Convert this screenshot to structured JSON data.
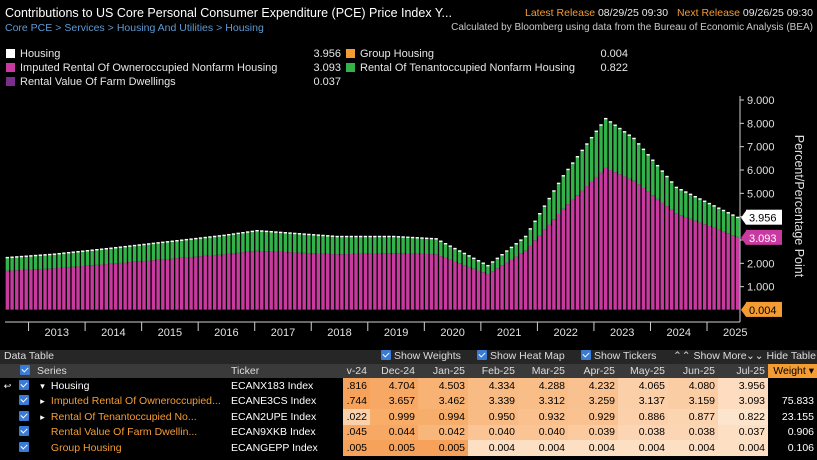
{
  "header": {
    "title": "Contributions to US Core Personal Consumer Expenditure (PCE) Price Index Y...",
    "latest_release_label": "Latest Release",
    "latest_release_value": "08/29/25 09:30",
    "next_release_label": "Next Release",
    "next_release_value": "09/26/25 09:30",
    "breadcrumb": [
      "Core PCE",
      "Services",
      "Housing And Utilities",
      "Housing"
    ],
    "source": "Calculated by Bloomberg using data from the Bureau of Economic Analysis (BEA)"
  },
  "legend": [
    {
      "label": "Housing",
      "value": "3.956",
      "color": "#ffffff"
    },
    {
      "label": "Group Housing",
      "value": "0.004",
      "color": "#f39c34"
    },
    {
      "label": "Imputed Rental Of Owneroccupied Nonfarm Housing",
      "value": "3.093",
      "color": "#c93aa0"
    },
    {
      "label": "Rental Of Tenantoccupied Nonfarm Housing",
      "value": "0.822",
      "color": "#33b24a"
    },
    {
      "label": "Rental Value Of Farm Dwellings",
      "value": "0.037",
      "color": "#7b2e8e"
    }
  ],
  "chart_data": {
    "type": "bar",
    "stacked": true,
    "x_start": "2012-08",
    "x_end": "2025-07",
    "x_tick_labels": [
      "2013",
      "2014",
      "2015",
      "2016",
      "2017",
      "2018",
      "2019",
      "2020",
      "2021",
      "2022",
      "2023",
      "2024",
      "2025"
    ],
    "ylabel": "Percent/Percentage Point",
    "ylim": [
      0,
      9
    ],
    "y_ticks": [
      "1.000",
      "2.000",
      "3.000",
      "4.000",
      "5.000",
      "6.000",
      "7.000",
      "8.000",
      "9.000"
    ],
    "last_value_labels": [
      "3.956",
      "3.093",
      "0.004"
    ],
    "series": [
      {
        "name": "Imputed Rental Of Owneroccupied Nonfarm Housing",
        "color": "#c93aa0",
        "knots": [
          [
            "2012-08",
            1.65
          ],
          [
            "2013-06",
            1.75
          ],
          [
            "2014-06",
            1.95
          ],
          [
            "2015-06",
            2.15
          ],
          [
            "2016-06",
            2.35
          ],
          [
            "2017-01",
            2.5
          ],
          [
            "2018-06",
            2.35
          ],
          [
            "2019-06",
            2.4
          ],
          [
            "2020-03",
            2.35
          ],
          [
            "2021-02",
            1.5
          ],
          [
            "2021-10",
            2.5
          ],
          [
            "2022-06",
            4.3
          ],
          [
            "2023-03",
            6.05
          ],
          [
            "2023-09",
            5.5
          ],
          [
            "2024-06",
            4.1
          ],
          [
            "2025-07",
            3.093
          ]
        ]
      },
      {
        "name": "Rental Of Tenantoccupied Nonfarm Housing",
        "color": "#33b24a",
        "knots": [
          [
            "2012-08",
            0.55
          ],
          [
            "2014-06",
            0.65
          ],
          [
            "2016-06",
            0.8
          ],
          [
            "2017-01",
            0.85
          ],
          [
            "2018-06",
            0.75
          ],
          [
            "2019-06",
            0.7
          ],
          [
            "2020-03",
            0.65
          ],
          [
            "2021-02",
            0.35
          ],
          [
            "2021-10",
            0.6
          ],
          [
            "2022-06",
            1.4
          ],
          [
            "2023-03",
            2.1
          ],
          [
            "2023-09",
            1.8
          ],
          [
            "2024-06",
            1.1
          ],
          [
            "2025-07",
            0.822
          ]
        ]
      },
      {
        "name": "Rental Value Of Farm Dwellings",
        "color": "#7b2e8e",
        "knots": [
          [
            "2012-08",
            0.03
          ],
          [
            "2025-07",
            0.037
          ]
        ]
      },
      {
        "name": "Group Housing",
        "color": "#f39c34",
        "knots": [
          [
            "2012-08",
            0.004
          ],
          [
            "2025-07",
            0.004
          ]
        ]
      }
    ]
  },
  "data_table": {
    "title": "Data Table",
    "options": [
      "Show Weights",
      "Show Heat Map",
      "Show Tickers",
      "Show More",
      "Hide Table"
    ],
    "columns": [
      "Series",
      "Ticker",
      "v-24",
      "Dec-24",
      "Jan-25",
      "Feb-25",
      "Mar-25",
      "Apr-25",
      "May-25",
      "Jun-25",
      "Jul-25",
      "Weight"
    ],
    "rows": [
      {
        "series": "Housing",
        "ticker": "ECANX183 Index",
        "values": [
          ".816",
          "4.704",
          "4.503",
          "4.334",
          "4.288",
          "4.232",
          "4.065",
          "4.080",
          "3.956"
        ],
        "weight": "",
        "top": true,
        "expander": "▾"
      },
      {
        "series": "Imputed Rental Of Owneroccupied...",
        "ticker": "ECANE3CS Index",
        "values": [
          ".744",
          "3.657",
          "3.462",
          "3.339",
          "3.312",
          "3.259",
          "3.137",
          "3.159",
          "3.093"
        ],
        "weight": "75.833",
        "expander": "▸"
      },
      {
        "series": "Rental Of Tenantoccupied No...",
        "ticker": "ECAN2UPE Index",
        "values": [
          ".022",
          "0.999",
          "0.994",
          "0.950",
          "0.932",
          "0.929",
          "0.886",
          "0.877",
          "0.822"
        ],
        "weight": "23.155",
        "expander": "▸"
      },
      {
        "series": "Rental Value Of Farm Dwellin...",
        "ticker": "ECAN9XKB Index",
        "values": [
          ".045",
          "0.044",
          "0.042",
          "0.040",
          "0.040",
          "0.039",
          "0.038",
          "0.038",
          "0.037"
        ],
        "weight": "0.906",
        "expander": ""
      },
      {
        "series": "Group Housing",
        "ticker": "ECANGEPP Index",
        "values": [
          ".005",
          "0.005",
          "0.005",
          "0.004",
          "0.004",
          "0.004",
          "0.004",
          "0.004",
          "0.004"
        ],
        "weight": "0.106",
        "expander": ""
      }
    ]
  }
}
